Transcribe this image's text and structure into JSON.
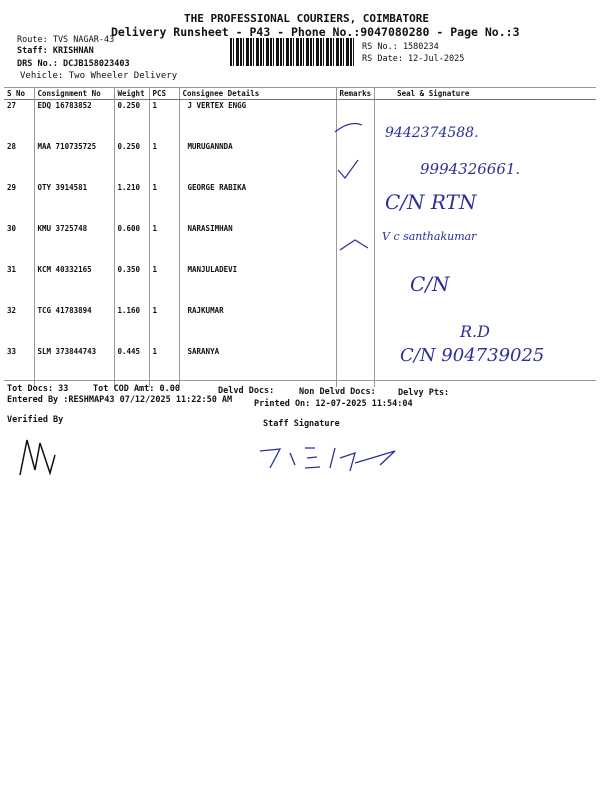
{
  "header": {
    "company": "THE PROFESSIONAL COURIERS, COIMBATORE",
    "title": "Delivery Runsheet - P43 - Phone No.:9047080280 - Page No.:3",
    "route": "Route: TVS NAGAR-43",
    "staff": "Staff: KRISHNAN",
    "drs": "DRS No.: DCJB158023403",
    "vehicle": "Vehicle: Two Wheeler Delivery",
    "rs_no": "RS No.: 1580234",
    "rs_date": "RS Date: 12-Jul-2025"
  },
  "table": {
    "columns": [
      "S No",
      "Consignment No",
      "Weight",
      "PCS",
      "Consignee Details",
      "Remarks",
      "Seal & Signature"
    ],
    "rows": [
      {
        "sno": "27",
        "cons": "EDQ 16783852",
        "weight": "0.250",
        "pcs": "1",
        "consignee": "J VERTEX ENGG"
      },
      {
        "sno": "28",
        "cons": "MAA 710735725",
        "weight": "0.250",
        "pcs": "1",
        "consignee": "MURUGANNDA"
      },
      {
        "sno": "29",
        "cons": "OTY 3914581",
        "weight": "1.210",
        "pcs": "1",
        "consignee": "GEORGE RABIKA"
      },
      {
        "sno": "30",
        "cons": "KMU 3725748",
        "weight": "0.600",
        "pcs": "1",
        "consignee": "NARASIMHAN"
      },
      {
        "sno": "31",
        "cons": "KCM 40332165",
        "weight": "0.350",
        "pcs": "1",
        "consignee": "MANJULADEVI"
      },
      {
        "sno": "32",
        "cons": "TCG 41783894",
        "weight": "1.160",
        "pcs": "1",
        "consignee": "RAJKUMAR"
      },
      {
        "sno": "33",
        "cons": "SLM 373844743",
        "weight": "0.445",
        "pcs": "1",
        "consignee": "SARANYA"
      }
    ]
  },
  "handwriting": {
    "r27": "9442374588.",
    "r28": "9994326661.",
    "r29": "C/N RTN",
    "r30": "V c santhakumar",
    "r31": "C/N",
    "r33a": "R.D",
    "r33b": "C/N 904739025"
  },
  "footer": {
    "tot_docs": "Tot Docs:  33",
    "cod": "Tot COD Amt:    0.00",
    "delvd": "Delvd Docs:",
    "non_delvd": "Non Delvd Docs:",
    "pts": "Delvy Pts:",
    "entered": "Entered By :RESHMAP43 07/12/2025 11:22:50 AM",
    "printed": "Printed On: 12-07-2025 11:54:04",
    "verified": "Verified By",
    "staff_sig": "Staff Signature"
  }
}
